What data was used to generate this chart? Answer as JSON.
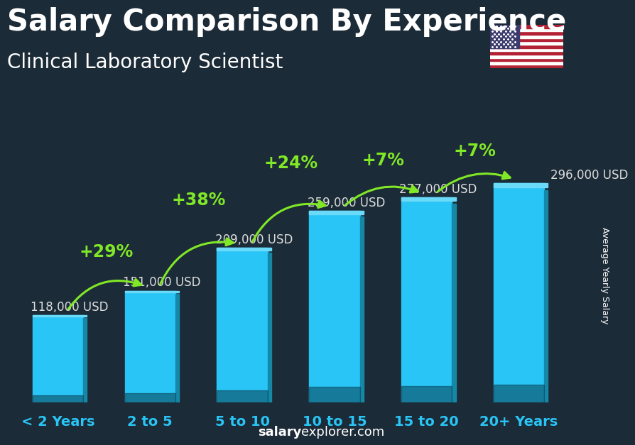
{
  "categories": [
    "< 2 Years",
    "2 to 5",
    "5 to 10",
    "10 to 15",
    "15 to 20",
    "20+ Years"
  ],
  "values": [
    118000,
    151000,
    209000,
    259000,
    277000,
    296000
  ],
  "labels": [
    "118,000 USD",
    "151,000 USD",
    "209,000 USD",
    "259,000 USD",
    "277,000 USD",
    "296,000 USD"
  ],
  "pct_changes": [
    "+29%",
    "+38%",
    "+24%",
    "+7%",
    "+7%"
  ],
  "bar_color_main": "#29c5f6",
  "bar_color_side": "#1588a8",
  "bar_color_top": "#6adaf8",
  "bg_color": "#1c2b38",
  "title": "Salary Comparison By Experience",
  "subtitle": "Clinical Laboratory Scientist",
  "ylabel": "Average Yearly Salary",
  "footer_bold": "salary",
  "footer_normal": "explorer.com",
  "title_fontsize": 30,
  "subtitle_fontsize": 20,
  "label_fontsize": 12,
  "pct_fontsize": 17,
  "cat_fontsize": 14,
  "green_color": "#80e826",
  "cyan_color": "#29c5f6",
  "white_color": "#ffffff",
  "label_color": "#dddddd"
}
